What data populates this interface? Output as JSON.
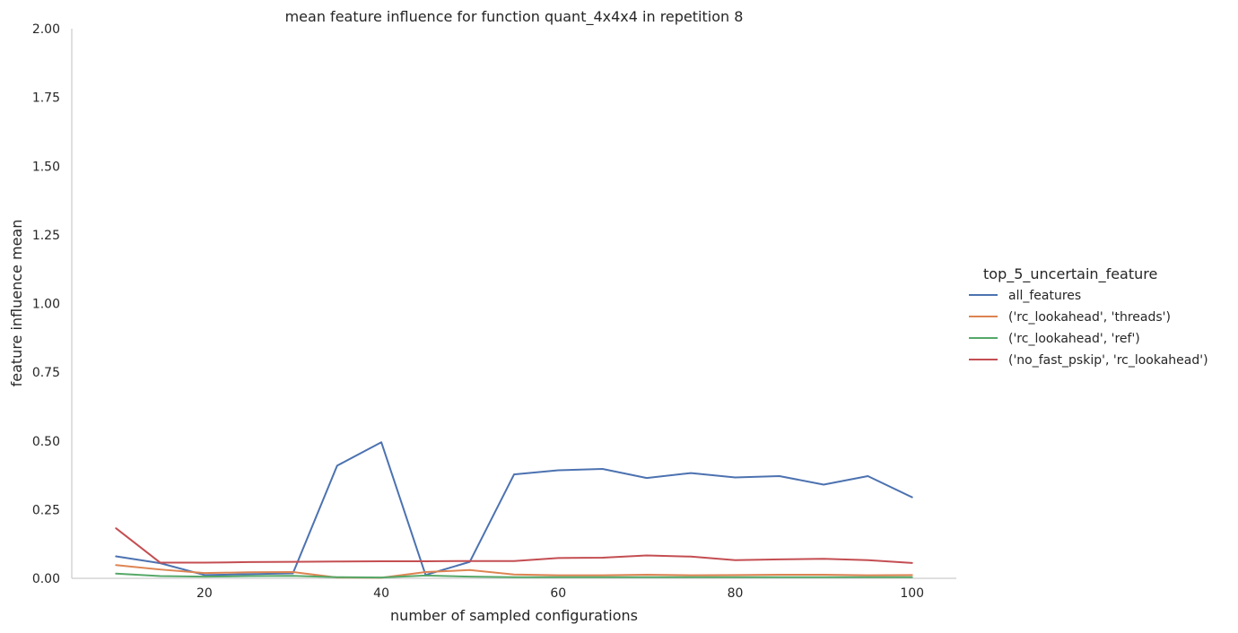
{
  "chart_data": {
    "type": "line",
    "title": "mean feature influence for function quant_4x4x4 in repetition 8",
    "xlabel": "number of sampled configurations",
    "ylabel": "feature influence mean",
    "xlim": [
      5,
      105
    ],
    "ylim": [
      0,
      2.0
    ],
    "x_ticks": [
      20,
      40,
      60,
      80,
      100
    ],
    "y_ticks": [
      0.0,
      0.25,
      0.5,
      0.75,
      1.0,
      1.25,
      1.5,
      1.75,
      2.0
    ],
    "y_tick_labels": [
      "0.00",
      "0.25",
      "0.50",
      "0.75",
      "1.00",
      "1.25",
      "1.50",
      "1.75",
      "2.00"
    ],
    "grid": false,
    "legend_title": "top_5_uncertain_feature",
    "legend_position": "right",
    "x": [
      10,
      15,
      20,
      25,
      30,
      35,
      40,
      45,
      50,
      55,
      60,
      65,
      70,
      75,
      80,
      85,
      90,
      95,
      100
    ],
    "series": [
      {
        "name": "all_features",
        "color": "#4c72b0",
        "values": [
          0.08,
          0.055,
          0.012,
          0.015,
          0.018,
          0.41,
          0.495,
          0.012,
          0.06,
          0.378,
          0.393,
          0.398,
          0.365,
          0.383,
          0.367,
          0.372,
          0.341,
          0.372,
          0.295
        ]
      },
      {
        "name": "('rc_lookahead', 'threads')",
        "color": "#dd8452",
        "values": [
          0.048,
          0.032,
          0.019,
          0.022,
          0.023,
          0.003,
          0.002,
          0.023,
          0.03,
          0.014,
          0.011,
          0.011,
          0.013,
          0.011,
          0.012,
          0.013,
          0.013,
          0.011,
          0.012
        ]
      },
      {
        "name": "('rc_lookahead', 'ref')",
        "color": "#55a868",
        "values": [
          0.017,
          0.008,
          0.006,
          0.008,
          0.009,
          0.004,
          0.003,
          0.01,
          0.006,
          0.004,
          0.004,
          0.004,
          0.004,
          0.004,
          0.004,
          0.004,
          0.004,
          0.004,
          0.004
        ]
      },
      {
        "name": "('no_fast_pskip', 'rc_lookahead')",
        "color": "#c44e52",
        "values": [
          0.182,
          0.057,
          0.057,
          0.059,
          0.06,
          0.061,
          0.062,
          0.062,
          0.063,
          0.063,
          0.074,
          0.075,
          0.083,
          0.079,
          0.066,
          0.069,
          0.071,
          0.066,
          0.056
        ]
      }
    ]
  }
}
